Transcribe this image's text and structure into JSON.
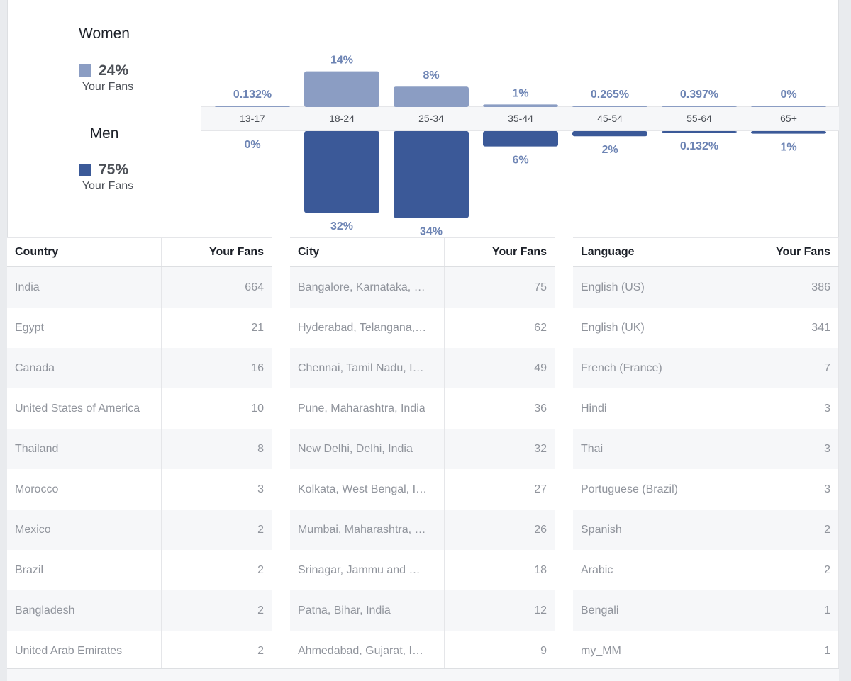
{
  "legend": {
    "women": {
      "title": "Women",
      "pct": "24%",
      "sub": "Your Fans",
      "color": "#8b9dc3"
    },
    "men": {
      "title": "Men",
      "pct": "75%",
      "sub": "Your Fans",
      "color": "#3b5998"
    }
  },
  "chart_data": {
    "type": "bar",
    "categories": [
      "13-17",
      "18-24",
      "25-34",
      "35-44",
      "45-54",
      "55-64",
      "65+"
    ],
    "series": [
      {
        "name": "Women",
        "values": [
          0.132,
          14,
          8,
          1,
          0.265,
          0.397,
          0
        ],
        "labels": [
          "0.132%",
          "14%",
          "8%",
          "1%",
          "0.265%",
          "0.397%",
          "0%"
        ],
        "color": "#8b9dc3"
      },
      {
        "name": "Men",
        "values": [
          0,
          32,
          34,
          6,
          2,
          0.132,
          1
        ],
        "labels": [
          "0%",
          "32%",
          "34%",
          "6%",
          "2%",
          "0.132%",
          "1%"
        ],
        "color": "#3b5998"
      }
    ],
    "ylabel": "",
    "xlabel": ""
  },
  "tables": [
    {
      "header": {
        "name": "Country",
        "value": "Your Fans"
      },
      "rows": [
        {
          "name": "India",
          "value": "664"
        },
        {
          "name": "Egypt",
          "value": "21"
        },
        {
          "name": "Canada",
          "value": "16"
        },
        {
          "name": "United States of America",
          "value": "10"
        },
        {
          "name": "Thailand",
          "value": "8"
        },
        {
          "name": "Morocco",
          "value": "3"
        },
        {
          "name": "Mexico",
          "value": "2"
        },
        {
          "name": "Brazil",
          "value": "2"
        },
        {
          "name": "Bangladesh",
          "value": "2"
        },
        {
          "name": "United Arab Emirates",
          "value": "2"
        }
      ]
    },
    {
      "header": {
        "name": "City",
        "value": "Your Fans"
      },
      "rows": [
        {
          "name": "Bangalore, Karnataka, …",
          "value": "75"
        },
        {
          "name": "Hyderabad, Telangana,…",
          "value": "62"
        },
        {
          "name": "Chennai, Tamil Nadu, I…",
          "value": "49"
        },
        {
          "name": "Pune, Maharashtra, India",
          "value": "36"
        },
        {
          "name": "New Delhi, Delhi, India",
          "value": "32"
        },
        {
          "name": "Kolkata, West Bengal, I…",
          "value": "27"
        },
        {
          "name": "Mumbai, Maharashtra, …",
          "value": "26"
        },
        {
          "name": "Srinagar, Jammu and …",
          "value": "18"
        },
        {
          "name": "Patna, Bihar, India",
          "value": "12"
        },
        {
          "name": "Ahmedabad, Gujarat, I…",
          "value": "9"
        }
      ]
    },
    {
      "header": {
        "name": "Language",
        "value": "Your Fans"
      },
      "rows": [
        {
          "name": "English (US)",
          "value": "386"
        },
        {
          "name": "English (UK)",
          "value": "341"
        },
        {
          "name": "French (France)",
          "value": "7"
        },
        {
          "name": "Hindi",
          "value": "3"
        },
        {
          "name": "Thai",
          "value": "3"
        },
        {
          "name": "Portuguese (Brazil)",
          "value": "3"
        },
        {
          "name": "Spanish",
          "value": "2"
        },
        {
          "name": "Arabic",
          "value": "2"
        },
        {
          "name": "Bengali",
          "value": "1"
        },
        {
          "name": "my_MM",
          "value": "1"
        }
      ]
    }
  ]
}
